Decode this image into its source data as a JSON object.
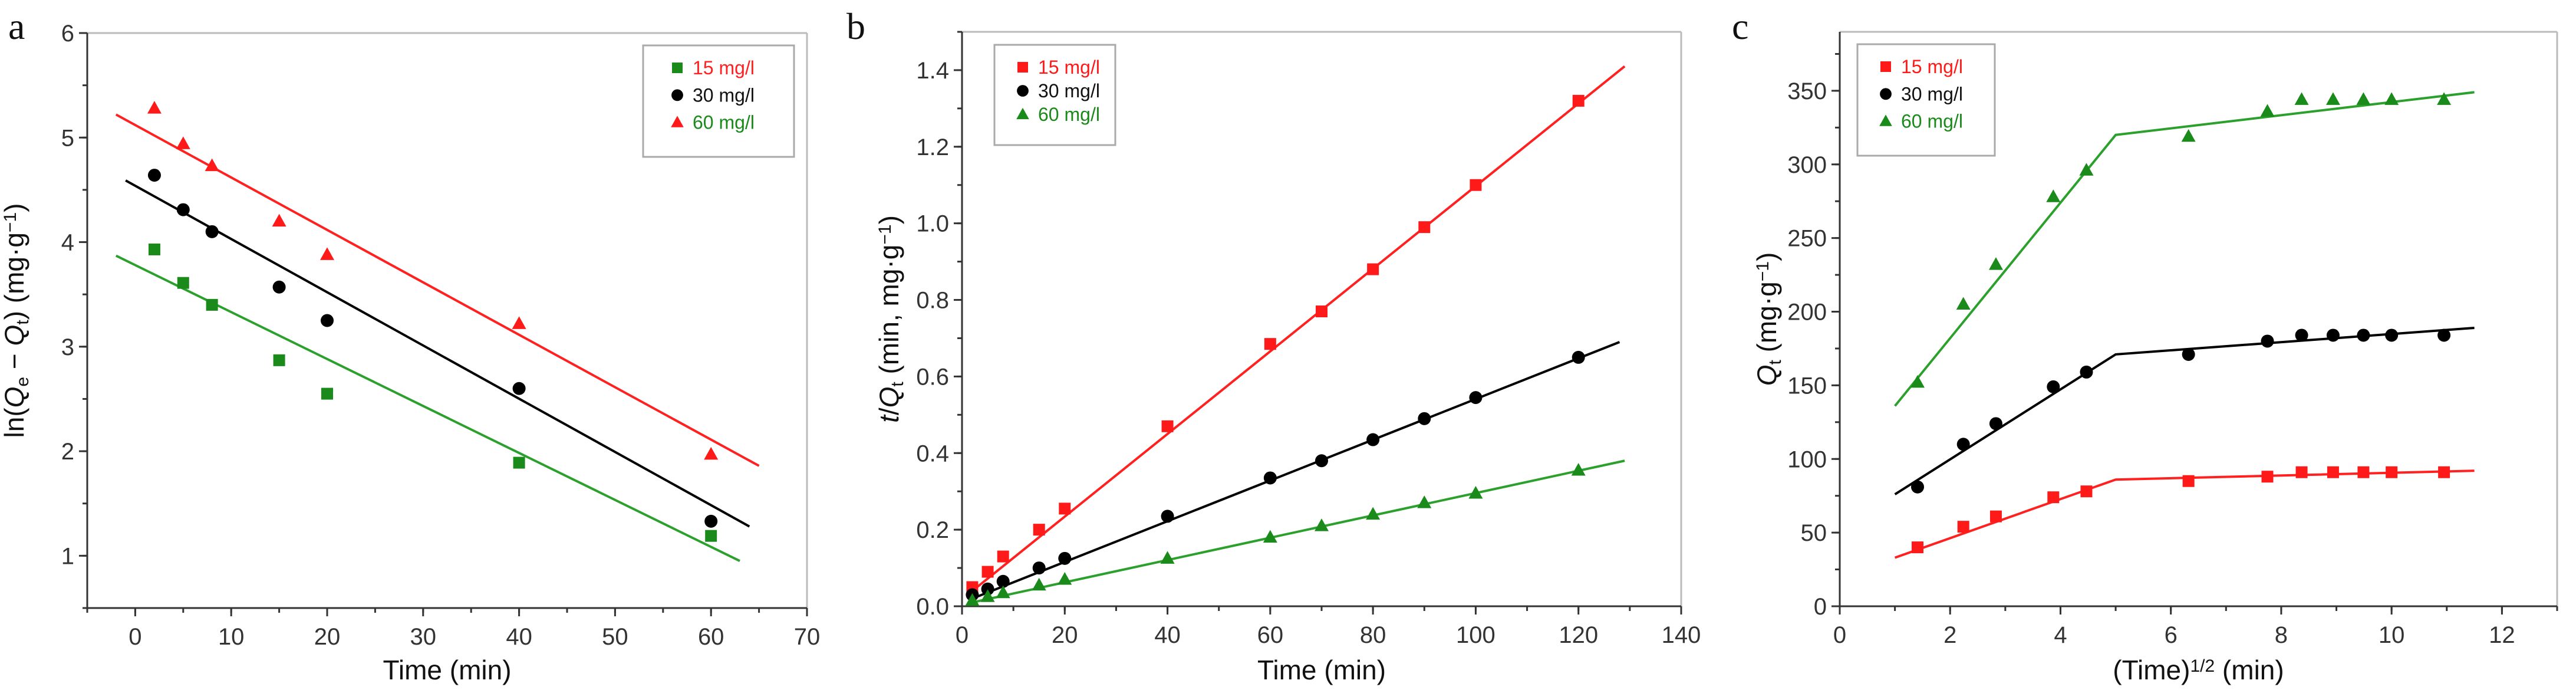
{
  "chart_data": [
    {
      "panel": "a",
      "type": "scatter",
      "xlabel": "Time (min)",
      "ylabel_parts": [
        {
          "t": "ln("
        },
        {
          "t": "Q",
          "i": true
        },
        {
          "t": "e",
          "sub": true
        },
        {
          "t": " − "
        },
        {
          "t": "Q",
          "i": true
        },
        {
          "t": "t",
          "sub": true
        },
        {
          "t": ") (mg·g"
        },
        {
          "t": "−1",
          "sup": true
        },
        {
          "t": ")"
        }
      ],
      "xlim": [
        -5,
        70
      ],
      "ylim": [
        0.5,
        6
      ],
      "xticks": [
        0,
        10,
        20,
        30,
        40,
        50,
        60,
        70
      ],
      "yticks": [
        1,
        2,
        3,
        4,
        5,
        6
      ],
      "xminor": 5,
      "yminor": 0.5,
      "x": [
        2,
        5,
        8,
        15,
        20,
        40,
        60
      ],
      "legend_position": "top-right",
      "series": [
        {
          "name": "15 mg/l",
          "marker": "square",
          "color": "#1a8a1a",
          "label_color": "#ff2020",
          "values": [
            3.93,
            3.61,
            3.4,
            2.87,
            2.55,
            1.89,
            1.19
          ],
          "fit": [
            [
              -2,
              3.87
            ],
            [
              63,
              0.95
            ]
          ],
          "fit_color": "#2ca02c"
        },
        {
          "name": "30 mg/l",
          "marker": "circle",
          "color": "#000000",
          "label_color": "#111111",
          "values": [
            4.64,
            4.31,
            4.1,
            3.57,
            3.25,
            2.6,
            1.33
          ],
          "fit": [
            [
              -1,
              4.59
            ],
            [
              64,
              1.28
            ]
          ],
          "fit_color": "#000000"
        },
        {
          "name": "60 mg/l",
          "marker": "triangle",
          "color": "#ff1a1a",
          "label_color": "#1a8a1a",
          "values": [
            5.28,
            4.94,
            4.73,
            4.2,
            3.88,
            3.22,
            1.97
          ],
          "fit": [
            [
              -2,
              5.22
            ],
            [
              65,
              1.86
            ]
          ],
          "fit_color": "#ff2020"
        }
      ]
    },
    {
      "panel": "b",
      "type": "scatter",
      "xlabel": "Time (min)",
      "ylabel_parts": [
        {
          "t": "t",
          "i": true
        },
        {
          "t": "/"
        },
        {
          "t": "Q",
          "i": true
        },
        {
          "t": "t",
          "sub": true
        },
        {
          "t": " (min, mg·g"
        },
        {
          "t": "−1",
          "sup": true
        },
        {
          "t": ")"
        }
      ],
      "xlim": [
        0,
        140
      ],
      "ylim": [
        0,
        1.5
      ],
      "xticks": [
        0,
        20,
        40,
        60,
        80,
        100,
        120,
        140
      ],
      "yticks": [
        0.0,
        0.2,
        0.4,
        0.6,
        0.8,
        1.0,
        1.2,
        1.4
      ],
      "ytick_labels": [
        "0.0",
        "0.2",
        "0.4",
        "0.6",
        "0.8",
        "1.0",
        "1.2",
        "1.4"
      ],
      "xminor": 10,
      "yminor": 0.1,
      "x": [
        2,
        5,
        8,
        15,
        20,
        40,
        60,
        70,
        80,
        90,
        100,
        120
      ],
      "legend_position": "top-left",
      "series": [
        {
          "name": "15 mg/l",
          "marker": "square",
          "color": "#ff1a1a",
          "label_color": "#ff1a1a",
          "values": [
            0.05,
            0.09,
            0.13,
            0.2,
            0.255,
            0.47,
            0.685,
            0.77,
            0.88,
            0.99,
            1.1,
            1.32
          ],
          "fit": [
            [
              2,
              0.04
            ],
            [
              129,
              1.41
            ]
          ],
          "fit_color": "#ff2020"
        },
        {
          "name": "30 mg/l",
          "marker": "circle",
          "color": "#000000",
          "label_color": "#111111",
          "values": [
            0.03,
            0.045,
            0.065,
            0.1,
            0.125,
            0.235,
            0.335,
            0.38,
            0.435,
            0.49,
            0.545,
            0.65
          ],
          "fit": [
            [
              2,
              0.02
            ],
            [
              128,
              0.69
            ]
          ],
          "fit_color": "#000000"
        },
        {
          "name": "60 mg/l",
          "marker": "triangle",
          "color": "#1a8a1a",
          "label_color": "#1a8a1a",
          "values": [
            0.015,
            0.025,
            0.035,
            0.055,
            0.07,
            0.125,
            0.18,
            0.21,
            0.24,
            0.27,
            0.295,
            0.355
          ],
          "fit": [
            [
              2,
              0.01
            ],
            [
              129,
              0.38
            ]
          ],
          "fit_color": "#2ca02c"
        }
      ]
    },
    {
      "panel": "c",
      "type": "scatter",
      "xlabel_parts": [
        {
          "t": "(Time)"
        },
        {
          "t": "1/2",
          "sup": true
        },
        {
          "t": " (min)"
        }
      ],
      "ylabel_parts": [
        {
          "t": "Q",
          "i": true
        },
        {
          "t": "t",
          "sub": true
        },
        {
          "t": " (mg·g"
        },
        {
          "t": "−1",
          "sup": true
        },
        {
          "t": ")"
        }
      ],
      "xlim": [
        0,
        13
      ],
      "ylim": [
        0,
        390
      ],
      "xticks": [
        0,
        2,
        4,
        6,
        8,
        10,
        12
      ],
      "yticks": [
        0,
        50,
        100,
        150,
        200,
        250,
        300,
        350
      ],
      "xminor": 1,
      "yminor": 25,
      "x": [
        1.41,
        2.24,
        2.83,
        3.87,
        4.47,
        6.32,
        7.75,
        8.37,
        8.94,
        9.49,
        10.0,
        10.95
      ],
      "legend_position": "top-left",
      "series": [
        {
          "name": "15 mg/l",
          "marker": "square",
          "color": "#ff1a1a",
          "label_color": "#ff1a1a",
          "values": [
            40,
            54,
            61,
            74,
            78,
            85,
            88,
            91,
            91,
            91,
            91,
            91
          ],
          "fit": [
            [
              1,
              33
            ],
            [
              5,
              86
            ],
            [
              11.5,
              92
            ]
          ],
          "fit_color": "#ff2020"
        },
        {
          "name": "30 mg/l",
          "marker": "circle",
          "color": "#000000",
          "label_color": "#111111",
          "values": [
            81,
            110,
            124,
            149,
            159,
            171,
            180,
            184,
            184,
            184,
            184,
            184
          ],
          "fit": [
            [
              1,
              76
            ],
            [
              5,
              171
            ],
            [
              11.5,
              189
            ]
          ],
          "fit_color": "#000000"
        },
        {
          "name": "60 mg/l",
          "marker": "triangle",
          "color": "#1a8a1a",
          "label_color": "#1a8a1a",
          "values": [
            152,
            205,
            232,
            278,
            296,
            319,
            336,
            344,
            344,
            344,
            344,
            344
          ],
          "fit": [
            [
              1,
              136
            ],
            [
              5,
              320
            ],
            [
              11.5,
              349
            ]
          ],
          "fit_color": "#2ca02c"
        }
      ]
    }
  ]
}
